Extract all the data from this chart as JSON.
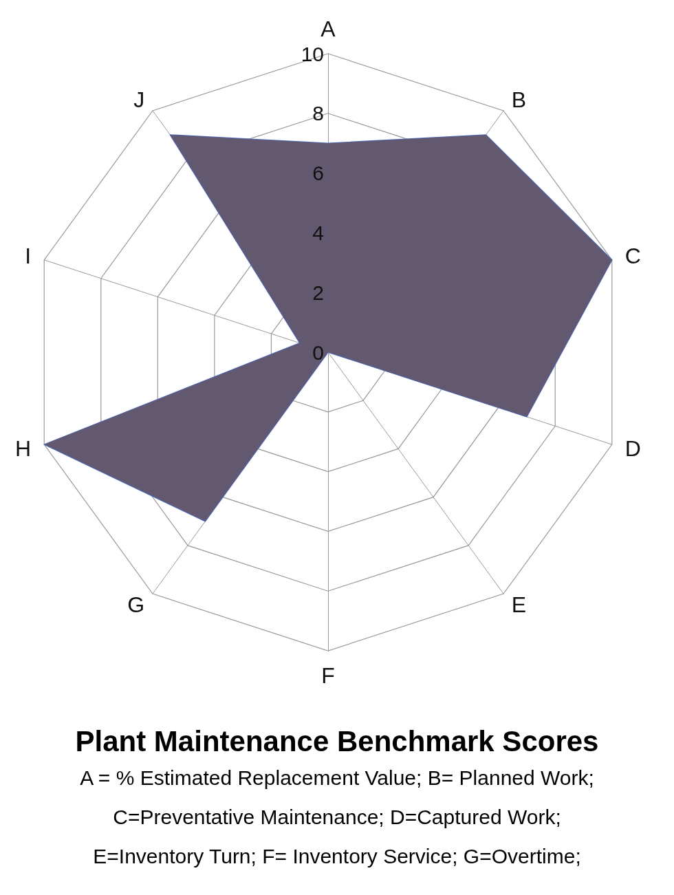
{
  "chart_data": {
    "type": "radar",
    "title": "Plant  Maintenance Benchmark Scores",
    "annotations": [
      "A = % Estimated Replacement Value; B= Planned Work;",
      "C=Preventative Maintenance; D=Captured Work;",
      "E=Inventory Turn; F= Inventory Service; G=Overtime;"
    ],
    "categories": [
      "A",
      "B",
      "C",
      "D",
      "E",
      "F",
      "G",
      "H",
      "I",
      "J"
    ],
    "series": [
      {
        "color": "#625870",
        "values": [
          7,
          9,
          10,
          7,
          0,
          0,
          7,
          10,
          1,
          9
        ]
      }
    ],
    "ylim": [
      0,
      10
    ],
    "yticks": [
      0,
      2,
      4,
      6,
      8,
      10
    ],
    "grid": true
  }
}
